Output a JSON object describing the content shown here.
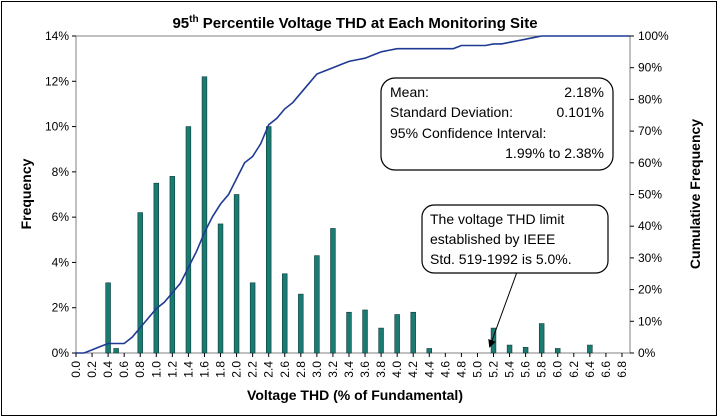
{
  "chart_data": {
    "type": "bar",
    "title_prefix": "95",
    "title_sup": "th",
    "title_rest": " Percentile Voltage THD at Each Monitoring Site",
    "xlabel": "Voltage THD (% of Fundamental)",
    "ylabel": "Frequency",
    "y2label": "Cumulative Frequency",
    "xlim": [
      0,
      6.9
    ],
    "ylim": [
      0,
      14
    ],
    "y2lim": [
      0,
      100
    ],
    "bar_width": 0.06,
    "x_ticks": [
      "0.0",
      "0.2",
      "0.4",
      "0.6",
      "0.8",
      "1.0",
      "1.2",
      "1.4",
      "1.6",
      "1.8",
      "2.0",
      "2.2",
      "2.4",
      "2.6",
      "2.8",
      "3.0",
      "3.2",
      "3.4",
      "3.6",
      "3.8",
      "4.0",
      "4.2",
      "4.4",
      "4.6",
      "4.8",
      "5.0",
      "5.2",
      "5.4",
      "5.6",
      "5.8",
      "6.0",
      "6.2",
      "6.4",
      "6.6",
      "6.8"
    ],
    "y_ticks": [
      "0%",
      "2%",
      "4%",
      "6%",
      "8%",
      "10%",
      "12%",
      "14%"
    ],
    "y2_ticks": [
      "0%",
      "10%",
      "20%",
      "30%",
      "40%",
      "50%",
      "60%",
      "70%",
      "80%",
      "90%",
      "100%"
    ],
    "bars": {
      "x": [
        0.4,
        0.5,
        0.8,
        1.0,
        1.2,
        1.4,
        1.6,
        1.8,
        2.0,
        2.2,
        2.4,
        2.6,
        2.8,
        3.0,
        3.2,
        3.4,
        3.6,
        3.8,
        4.0,
        4.2,
        4.4,
        5.2,
        5.4,
        5.6,
        5.8,
        6.0,
        6.4
      ],
      "values": [
        3.1,
        0.2,
        6.2,
        7.5,
        7.8,
        10.0,
        12.2,
        5.7,
        7.0,
        3.1,
        10.0,
        3.5,
        2.6,
        4.3,
        5.5,
        1.8,
        1.9,
        1.1,
        1.7,
        1.8,
        0.2,
        1.1,
        0.35,
        0.25,
        1.3,
        0.2,
        0.35
      ]
    },
    "cumulative": {
      "x": [
        0.0,
        0.1,
        0.2,
        0.3,
        0.4,
        0.5,
        0.6,
        0.7,
        0.8,
        0.9,
        1.0,
        1.1,
        1.2,
        1.3,
        1.4,
        1.5,
        1.6,
        1.7,
        1.8,
        1.9,
        2.0,
        2.1,
        2.2,
        2.3,
        2.4,
        2.5,
        2.6,
        2.7,
        2.8,
        2.9,
        3.0,
        3.1,
        3.2,
        3.3,
        3.4,
        3.5,
        3.6,
        3.7,
        3.8,
        3.9,
        4.0,
        4.1,
        4.2,
        4.3,
        4.4,
        4.5,
        4.6,
        4.7,
        4.8,
        4.9,
        5.0,
        5.1,
        5.2,
        5.3,
        5.4,
        5.5,
        5.6,
        5.7,
        5.8,
        5.9,
        6.0,
        6.1,
        6.2,
        6.3,
        6.4,
        6.5,
        6.6,
        6.7,
        6.8,
        6.9
      ],
      "values": [
        0,
        0,
        1,
        2,
        3,
        3,
        3,
        5,
        8,
        11,
        14,
        16,
        19,
        22,
        27,
        32,
        38,
        43,
        47,
        50,
        55,
        60,
        62,
        66,
        72,
        74,
        77,
        79,
        82,
        85,
        88,
        89,
        90,
        91,
        92,
        92.5,
        93,
        94,
        95,
        95.5,
        96,
        96,
        96,
        96,
        96,
        96,
        96,
        96,
        97,
        97,
        97,
        97,
        97.5,
        97.5,
        98,
        98.5,
        99,
        99.5,
        100,
        100,
        100,
        100,
        100,
        100,
        100,
        100,
        100,
        100,
        100,
        100
      ]
    },
    "bar_color": "#1b7a72",
    "line_color": "#1f3a93",
    "stats_box": {
      "mean_label": "Mean:",
      "mean_value": "2.18%",
      "sd_label": "Standard Deviation:",
      "sd_value": "0.101%",
      "ci_label": "95% Confidence Interval:",
      "ci_value": "1.99% to 2.38%"
    },
    "limit_box": {
      "line1": "The voltage THD limit",
      "line2": "established by IEEE",
      "line3": "Std. 519-1992 is 5.0%."
    }
  }
}
